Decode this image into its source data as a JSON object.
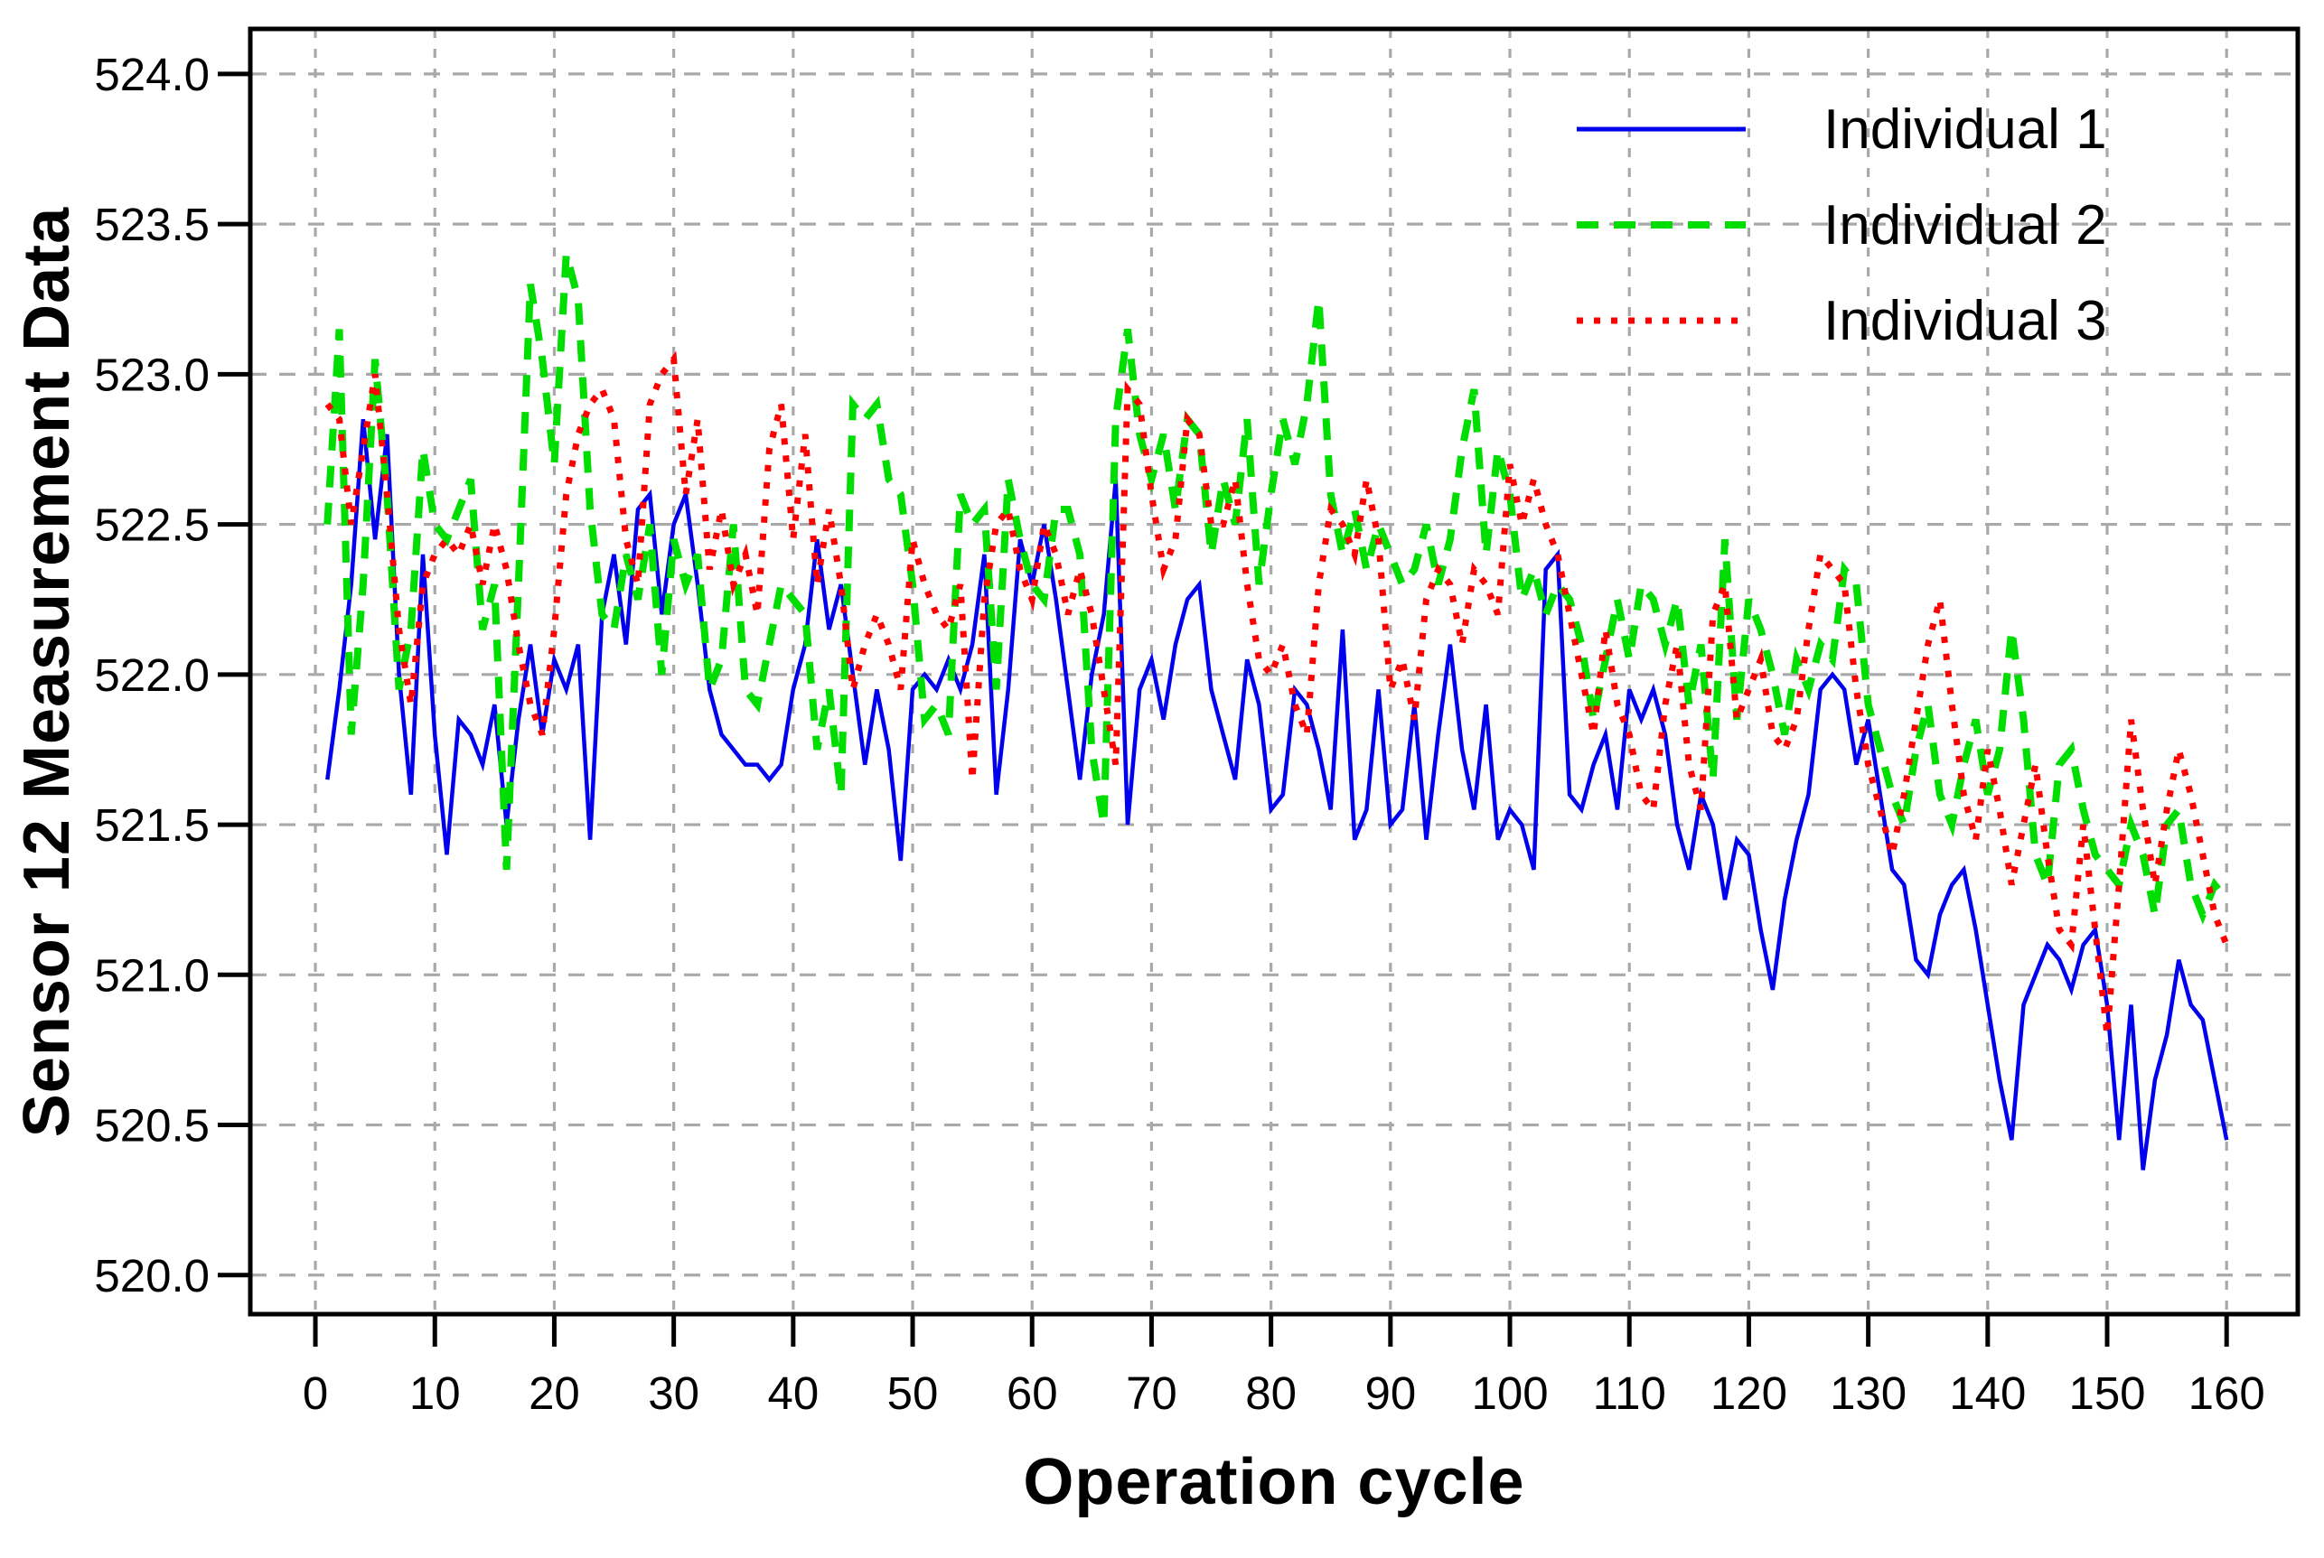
{
  "chart_data": {
    "type": "line",
    "title": "",
    "xlabel": "Operation cycle",
    "ylabel": "Sensor 12 Measurement Data",
    "xlim": [
      -5.45,
      165.96
    ],
    "ylim": [
      519.87,
      524.15
    ],
    "xticks": [
      0,
      10,
      20,
      30,
      40,
      50,
      60,
      70,
      80,
      90,
      100,
      110,
      120,
      130,
      140,
      150,
      160
    ],
    "yticks": [
      520.0,
      520.5,
      521.0,
      521.5,
      522.0,
      522.5,
      523.0,
      523.5,
      524.0
    ],
    "ytick_decimals": 1,
    "grid": true,
    "grid_color": "#a9a9a9",
    "axis_color": "#000000",
    "background": "#ffffff",
    "legend_position": "top-right",
    "x_start": 1,
    "series": [
      {
        "name": "Individual 1",
        "color": "#0000ee",
        "style": "solid",
        "width": 4.5,
        "values": [
          521.65,
          521.95,
          522.3,
          522.85,
          522.45,
          522.8,
          522.0,
          521.6,
          522.4,
          521.8,
          521.4,
          521.85,
          521.8,
          521.7,
          521.9,
          521.5,
          521.85,
          522.1,
          521.8,
          522.05,
          521.95,
          522.1,
          521.45,
          522.2,
          522.4,
          522.1,
          522.55,
          522.6,
          522.2,
          522.5,
          522.6,
          522.3,
          521.95,
          521.8,
          521.75,
          521.7,
          521.7,
          521.65,
          521.7,
          521.95,
          522.1,
          522.45,
          522.15,
          522.3,
          522.0,
          521.7,
          521.95,
          521.75,
          521.38,
          521.95,
          522.0,
          521.95,
          522.05,
          521.95,
          522.1,
          522.4,
          521.6,
          521.95,
          522.45,
          522.3,
          522.5,
          522.25,
          521.95,
          521.65,
          522.0,
          522.2,
          522.65,
          521.5,
          521.95,
          522.05,
          521.85,
          522.1,
          522.25,
          522.3,
          521.95,
          521.8,
          521.65,
          522.05,
          521.9,
          521.55,
          521.6,
          521.95,
          521.9,
          521.75,
          521.55,
          522.15,
          521.45,
          521.55,
          521.95,
          521.5,
          521.55,
          521.9,
          521.45,
          521.8,
          522.1,
          521.75,
          521.55,
          521.9,
          521.45,
          521.55,
          521.5,
          521.35,
          522.35,
          522.4,
          521.6,
          521.55,
          521.7,
          521.8,
          521.55,
          521.95,
          521.85,
          521.95,
          521.8,
          521.5,
          521.35,
          521.6,
          521.5,
          521.25,
          521.45,
          521.4,
          521.15,
          520.95,
          521.25,
          521.45,
          521.6,
          521.95,
          522.0,
          521.95,
          521.7,
          521.85,
          521.6,
          521.35,
          521.3,
          521.05,
          521.0,
          521.2,
          521.3,
          521.35,
          521.15,
          520.9,
          520.65,
          520.45,
          520.9,
          521.0,
          521.1,
          521.05,
          520.95,
          521.1,
          521.15,
          520.9,
          520.45,
          520.9,
          520.35,
          520.65,
          520.8,
          521.05,
          520.9,
          520.85,
          520.65,
          520.45
        ]
      },
      {
        "name": "Individual 2",
        "color": "#00dd00",
        "style": "dashed",
        "width": 8,
        "values": [
          522.5,
          523.15,
          521.8,
          522.3,
          523.05,
          522.6,
          521.95,
          522.15,
          522.75,
          522.5,
          522.45,
          522.55,
          522.65,
          522.15,
          522.3,
          521.35,
          522.3,
          523.3,
          523.05,
          522.7,
          523.4,
          523.25,
          522.55,
          522.2,
          522.15,
          522.4,
          522.25,
          522.5,
          522.0,
          522.45,
          522.3,
          522.4,
          521.95,
          522.05,
          522.5,
          521.95,
          521.9,
          522.1,
          522.3,
          522.25,
          522.2,
          521.75,
          521.95,
          521.6,
          522.9,
          522.85,
          522.9,
          522.65,
          522.6,
          522.3,
          521.85,
          521.9,
          521.8,
          522.6,
          522.5,
          522.55,
          521.95,
          522.65,
          522.45,
          522.3,
          522.25,
          522.55,
          522.55,
          522.4,
          521.75,
          521.5,
          522.85,
          523.15,
          522.8,
          522.65,
          522.8,
          522.55,
          522.85,
          522.8,
          522.4,
          522.65,
          522.5,
          522.85,
          522.3,
          522.6,
          522.85,
          522.7,
          522.9,
          523.25,
          522.6,
          522.4,
          522.55,
          522.35,
          522.5,
          522.4,
          522.3,
          522.35,
          522.5,
          522.3,
          522.45,
          522.75,
          522.95,
          522.4,
          522.75,
          522.6,
          522.25,
          522.35,
          522.2,
          522.3,
          522.25,
          522.1,
          521.85,
          522.05,
          522.25,
          522.05,
          522.3,
          522.25,
          522.1,
          522.25,
          521.9,
          522.1,
          521.65,
          522.45,
          521.85,
          522.25,
          522.15,
          522.0,
          521.8,
          522.05,
          521.95,
          522.1,
          522.05,
          522.35,
          522.3,
          521.9,
          521.75,
          521.6,
          521.5,
          521.75,
          521.9,
          521.6,
          521.5,
          521.7,
          521.85,
          521.6,
          521.75,
          522.15,
          521.85,
          521.4,
          521.3,
          521.7,
          521.75,
          521.55,
          521.4,
          521.35,
          521.3,
          521.5,
          521.4,
          521.2,
          521.5,
          521.55,
          521.3,
          521.2,
          521.3,
          521.25
        ]
      },
      {
        "name": "Individual 3",
        "color": "#ff0000",
        "style": "dotted",
        "width": 7,
        "values": [
          522.9,
          522.85,
          522.5,
          522.75,
          523.0,
          522.6,
          522.15,
          521.9,
          522.3,
          522.4,
          522.45,
          522.4,
          522.5,
          522.3,
          522.5,
          522.35,
          522.1,
          521.9,
          521.8,
          522.15,
          522.6,
          522.8,
          522.9,
          522.95,
          522.85,
          522.45,
          522.3,
          522.9,
          523.0,
          523.05,
          522.6,
          522.85,
          522.35,
          522.55,
          522.3,
          522.4,
          522.2,
          522.75,
          522.9,
          522.45,
          522.8,
          522.3,
          522.55,
          522.3,
          521.95,
          522.1,
          522.2,
          522.1,
          521.95,
          522.45,
          522.3,
          522.2,
          522.15,
          522.3,
          521.65,
          522.25,
          522.5,
          522.55,
          522.35,
          522.25,
          522.5,
          522.4,
          522.2,
          522.35,
          522.2,
          521.95,
          521.7,
          522.95,
          522.9,
          522.6,
          522.35,
          522.45,
          522.85,
          522.8,
          522.5,
          522.5,
          522.65,
          522.3,
          522.05,
          522.0,
          522.1,
          521.9,
          521.8,
          522.3,
          522.55,
          522.5,
          522.4,
          522.65,
          522.45,
          521.95,
          522.05,
          521.85,
          522.25,
          522.35,
          522.3,
          522.1,
          522.35,
          522.3,
          522.2,
          522.7,
          522.5,
          522.65,
          522.5,
          522.4,
          522.2,
          522.0,
          521.8,
          522.15,
          521.9,
          521.8,
          521.6,
          521.55,
          521.9,
          522.1,
          521.7,
          521.55,
          522.2,
          522.3,
          521.85,
          521.95,
          522.05,
          521.8,
          521.75,
          521.85,
          522.15,
          522.4,
          522.35,
          522.3,
          521.95,
          521.7,
          521.55,
          521.4,
          521.6,
          521.85,
          522.1,
          522.25,
          521.9,
          521.6,
          521.45,
          521.75,
          521.55,
          521.3,
          521.5,
          521.7,
          521.4,
          521.15,
          521.1,
          521.5,
          521.15,
          520.8,
          521.3,
          521.85,
          521.55,
          521.3,
          521.55,
          521.75,
          521.6,
          521.4,
          521.2,
          521.1
        ]
      }
    ]
  }
}
